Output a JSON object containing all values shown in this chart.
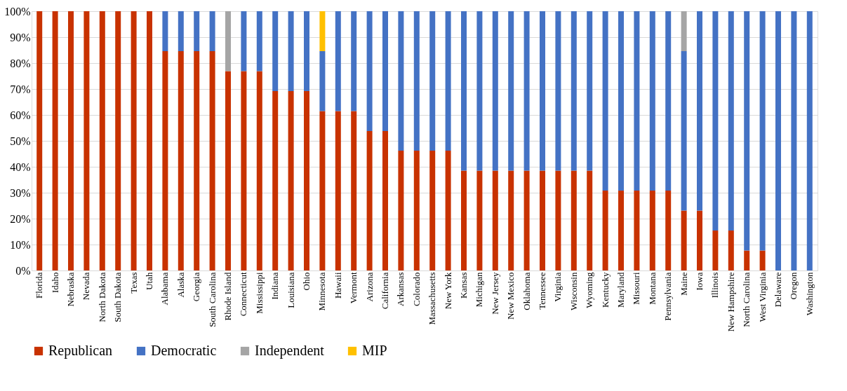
{
  "chart_data": {
    "type": "bar",
    "stacked": true,
    "categories": [
      "Florida",
      "Idaho",
      "Nebraska",
      "Nevada",
      "North Dakota",
      "South Dakota",
      "Texas",
      "Utah",
      "Alabama",
      "Alaska",
      "Georgia",
      "South Carolina",
      "Rhode Island",
      "Connecticut",
      "Mississippi",
      "Indiana",
      "Louisiana",
      "Ohio",
      "Minnesota",
      "Hawaii",
      "Vermont",
      "Arizona",
      "California",
      "Arkansas",
      "Colorado",
      "Massachusetts",
      "New York",
      "Kansas",
      "Michigan",
      "New Jersey",
      "New Mexico",
      "Oklahoma",
      "Tennessee",
      "Virginia",
      "Wisconsin",
      "Wyoming",
      "Kentucky",
      "Maryland",
      "Missouri",
      "Montana",
      "Pennsylvania",
      "Maine",
      "Iowa",
      "Illinois",
      "New Hampshire",
      "North Carolina",
      "West Virginia",
      "Delaware",
      "Oregon",
      "Washington"
    ],
    "series": [
      {
        "name": "Republican",
        "color": "#c83200",
        "values": [
          100,
          100,
          100,
          100,
          100,
          100,
          100,
          100,
          84.6,
          84.6,
          84.6,
          84.6,
          76.9,
          76.9,
          76.9,
          69.2,
          69.2,
          69.2,
          61.5,
          61.5,
          61.5,
          53.8,
          53.8,
          46.2,
          46.2,
          46.2,
          46.2,
          38.5,
          38.5,
          38.5,
          38.5,
          38.5,
          38.5,
          38.5,
          38.5,
          38.5,
          30.8,
          30.8,
          30.8,
          30.8,
          30.8,
          23.1,
          23.1,
          15.4,
          15.4,
          7.7,
          7.7,
          null,
          null,
          null
        ]
      },
      {
        "name": "Democratic",
        "color": "#4472c4",
        "values": [
          null,
          null,
          null,
          null,
          null,
          null,
          null,
          null,
          15.4,
          15.4,
          15.4,
          15.4,
          null,
          23.1,
          23.1,
          30.8,
          30.8,
          30.8,
          23.1,
          38.5,
          38.5,
          46.2,
          46.2,
          53.8,
          53.8,
          53.8,
          53.8,
          61.5,
          61.5,
          61.5,
          61.5,
          61.5,
          61.5,
          61.5,
          61.5,
          61.5,
          69.2,
          69.2,
          69.2,
          69.2,
          69.2,
          61.5,
          76.9,
          84.6,
          84.6,
          92.3,
          92.3,
          100,
          100,
          100
        ]
      },
      {
        "name": "Independent",
        "color": "#a5a5a5",
        "values": [
          null,
          null,
          null,
          null,
          null,
          null,
          null,
          null,
          null,
          null,
          null,
          null,
          23.1,
          null,
          null,
          null,
          null,
          null,
          null,
          null,
          null,
          null,
          null,
          null,
          null,
          null,
          null,
          null,
          null,
          null,
          null,
          null,
          null,
          null,
          null,
          null,
          null,
          null,
          null,
          null,
          null,
          15.4,
          null,
          null,
          null,
          null,
          null,
          null,
          null,
          null
        ]
      },
      {
        "name": "MIP",
        "color": "#ffc000",
        "values": [
          null,
          null,
          null,
          null,
          null,
          null,
          null,
          null,
          null,
          null,
          null,
          null,
          null,
          null,
          null,
          null,
          null,
          null,
          15.4,
          null,
          null,
          null,
          null,
          null,
          null,
          null,
          null,
          null,
          null,
          null,
          null,
          null,
          null,
          null,
          null,
          null,
          null,
          null,
          null,
          null,
          null,
          null,
          null,
          null,
          null,
          null,
          null,
          null,
          null,
          null
        ]
      }
    ],
    "ylim": [
      0,
      100
    ],
    "yticks": [
      {
        "value": 0,
        "label": "0%"
      },
      {
        "value": 10,
        "label": "10%"
      },
      {
        "value": 20,
        "label": "20%"
      },
      {
        "value": 30,
        "label": "30%"
      },
      {
        "value": 40,
        "label": "40%"
      },
      {
        "value": 50,
        "label": "50%"
      },
      {
        "value": 60,
        "label": "60%"
      },
      {
        "value": 70,
        "label": "70%"
      },
      {
        "value": 80,
        "label": "80%"
      },
      {
        "value": 90,
        "label": "90%"
      },
      {
        "value": 100,
        "label": "100%"
      }
    ],
    "grid": "y",
    "legend": "bottom"
  }
}
